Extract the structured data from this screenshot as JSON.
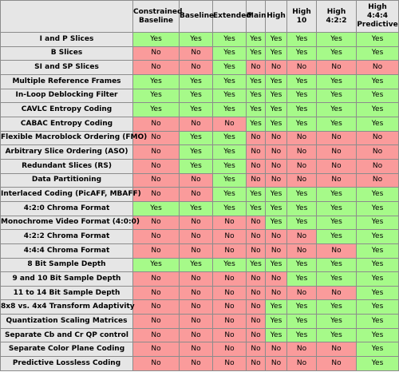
{
  "columns": [
    "Constrained Baseline",
    "Baseline",
    "Extended",
    "Main",
    "High",
    "High 10",
    "High 4:2:2",
    "High 4:4:4 Predictive"
  ],
  "colors": {
    "yes": "#a6fa89",
    "no": "#fa9b9b",
    "header": "#e6e6e6"
  },
  "rows": [
    {
      "feature": "I and P Slices",
      "values": [
        "Yes",
        "Yes",
        "Yes",
        "Yes",
        "Yes",
        "Yes",
        "Yes",
        "Yes"
      ]
    },
    {
      "feature": "B Slices",
      "values": [
        "No",
        "No",
        "Yes",
        "Yes",
        "Yes",
        "Yes",
        "Yes",
        "Yes"
      ]
    },
    {
      "feature": "SI and SP Slices",
      "values": [
        "No",
        "No",
        "Yes",
        "No",
        "No",
        "No",
        "No",
        "No"
      ]
    },
    {
      "feature": "Multiple Reference Frames",
      "values": [
        "Yes",
        "Yes",
        "Yes",
        "Yes",
        "Yes",
        "Yes",
        "Yes",
        "Yes"
      ]
    },
    {
      "feature": "In-Loop Deblocking Filter",
      "values": [
        "Yes",
        "Yes",
        "Yes",
        "Yes",
        "Yes",
        "Yes",
        "Yes",
        "Yes"
      ]
    },
    {
      "feature": "CAVLC Entropy Coding",
      "values": [
        "Yes",
        "Yes",
        "Yes",
        "Yes",
        "Yes",
        "Yes",
        "Yes",
        "Yes"
      ]
    },
    {
      "feature": "CABAC Entropy Coding",
      "values": [
        "No",
        "No",
        "No",
        "Yes",
        "Yes",
        "Yes",
        "Yes",
        "Yes"
      ]
    },
    {
      "feature": "Flexible Macroblock Ordering (FMO)",
      "values": [
        "No",
        "Yes",
        "Yes",
        "No",
        "No",
        "No",
        "No",
        "No"
      ]
    },
    {
      "feature": "Arbitrary Slice Ordering (ASO)",
      "values": [
        "No",
        "Yes",
        "Yes",
        "No",
        "No",
        "No",
        "No",
        "No"
      ]
    },
    {
      "feature": "Redundant Slices (RS)",
      "values": [
        "No",
        "Yes",
        "Yes",
        "No",
        "No",
        "No",
        "No",
        "No"
      ]
    },
    {
      "feature": "Data Partitioning",
      "values": [
        "No",
        "No",
        "Yes",
        "No",
        "No",
        "No",
        "No",
        "No"
      ]
    },
    {
      "feature": "Interlaced Coding (PicAFF, MBAFF)",
      "values": [
        "No",
        "No",
        "Yes",
        "Yes",
        "Yes",
        "Yes",
        "Yes",
        "Yes"
      ]
    },
    {
      "feature": "4:2:0 Chroma Format",
      "values": [
        "Yes",
        "Yes",
        "Yes",
        "Yes",
        "Yes",
        "Yes",
        "Yes",
        "Yes"
      ]
    },
    {
      "feature": "Monochrome Video Format (4:0:0)",
      "values": [
        "No",
        "No",
        "No",
        "No",
        "Yes",
        "Yes",
        "Yes",
        "Yes"
      ]
    },
    {
      "feature": "4:2:2 Chroma Format",
      "values": [
        "No",
        "No",
        "No",
        "No",
        "No",
        "No",
        "Yes",
        "Yes"
      ]
    },
    {
      "feature": "4:4:4 Chroma Format",
      "values": [
        "No",
        "No",
        "No",
        "No",
        "No",
        "No",
        "No",
        "Yes"
      ]
    },
    {
      "feature": "8 Bit Sample Depth",
      "values": [
        "Yes",
        "Yes",
        "Yes",
        "Yes",
        "Yes",
        "Yes",
        "Yes",
        "Yes"
      ]
    },
    {
      "feature": "9 and 10 Bit Sample Depth",
      "values": [
        "No",
        "No",
        "No",
        "No",
        "No",
        "Yes",
        "Yes",
        "Yes"
      ]
    },
    {
      "feature": "11 to 14 Bit Sample Depth",
      "values": [
        "No",
        "No",
        "No",
        "No",
        "No",
        "No",
        "No",
        "Yes"
      ]
    },
    {
      "feature": "8x8 vs. 4x4 Transform Adaptivity",
      "values": [
        "No",
        "No",
        "No",
        "No",
        "Yes",
        "Yes",
        "Yes",
        "Yes"
      ]
    },
    {
      "feature": "Quantization Scaling Matrices",
      "values": [
        "No",
        "No",
        "No",
        "No",
        "Yes",
        "Yes",
        "Yes",
        "Yes"
      ]
    },
    {
      "feature": "Separate Cb and Cr QP control",
      "values": [
        "No",
        "No",
        "No",
        "No",
        "Yes",
        "Yes",
        "Yes",
        "Yes"
      ]
    },
    {
      "feature": "Separate Color Plane Coding",
      "values": [
        "No",
        "No",
        "No",
        "No",
        "No",
        "No",
        "No",
        "Yes"
      ]
    },
    {
      "feature": "Predictive Lossless Coding",
      "values": [
        "No",
        "No",
        "No",
        "No",
        "No",
        "No",
        "No",
        "Yes"
      ]
    }
  ]
}
